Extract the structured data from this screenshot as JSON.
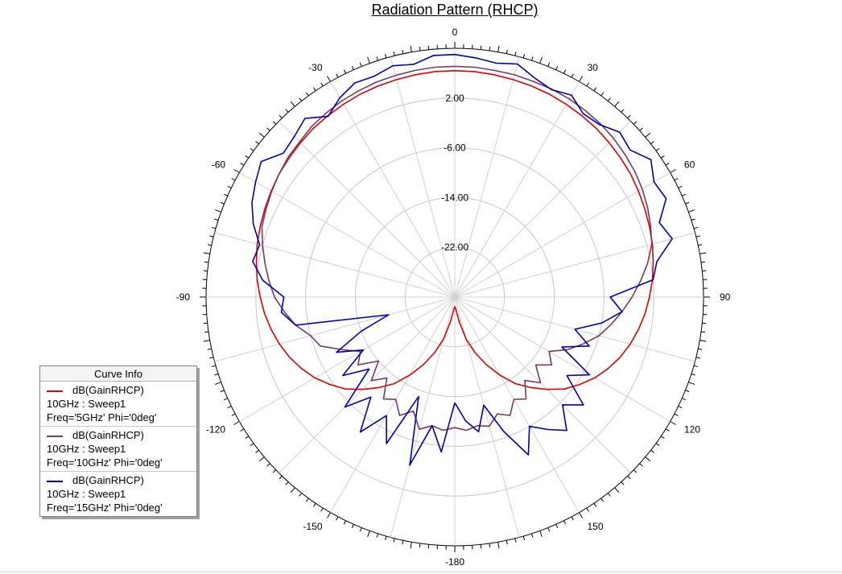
{
  "chart_data": {
    "type": "polar-line",
    "title": "Radiation Pattern (RHCP)",
    "angle_ticks": [
      {
        "angle": 0,
        "label": "0"
      },
      {
        "angle": 30,
        "label": "30"
      },
      {
        "angle": 60,
        "label": "60"
      },
      {
        "angle": 90,
        "label": "90"
      },
      {
        "angle": 120,
        "label": "120"
      },
      {
        "angle": 150,
        "label": "150"
      },
      {
        "angle": 180,
        "label": "-180"
      },
      {
        "angle": -150,
        "label": "-150"
      },
      {
        "angle": -120,
        "label": "-120"
      },
      {
        "angle": -90,
        "label": "-90"
      },
      {
        "angle": -60,
        "label": "-60"
      },
      {
        "angle": -30,
        "label": "-30"
      }
    ],
    "radial_ticks": [
      {
        "value": 2,
        "label": "2.00"
      },
      {
        "value": -6,
        "label": "-6.00"
      },
      {
        "value": -14,
        "label": "-14.00"
      },
      {
        "value": -22,
        "label": "-22.00"
      }
    ],
    "radial_range": [
      -30,
      10
    ],
    "angle_range": [
      -180,
      180
    ],
    "legend_title": "Curve Info",
    "series": [
      {
        "name": "dB(GainRHCP)",
        "setup": "10GHz : Sweep1",
        "params": "Freq='5GHz' Phi='0deg'",
        "color": "#e00000",
        "points": [
          [
            -180,
            -28.5
          ],
          [
            -175,
            -28
          ],
          [
            -170,
            -26
          ],
          [
            -165,
            -23
          ],
          [
            -160,
            -20.5
          ],
          [
            -155,
            -18
          ],
          [
            -150,
            -15.5
          ],
          [
            -145,
            -13
          ],
          [
            -140,
            -11
          ],
          [
            -135,
            -9
          ],
          [
            -130,
            -7
          ],
          [
            -125,
            -5.5
          ],
          [
            -120,
            -4
          ],
          [
            -115,
            -2.8
          ],
          [
            -110,
            -1.7
          ],
          [
            -105,
            -0.8
          ],
          [
            -100,
            0
          ],
          [
            -95,
            0.7
          ],
          [
            -90,
            1.3
          ],
          [
            -85,
            1.9
          ],
          [
            -80,
            2.4
          ],
          [
            -75,
            2.9
          ],
          [
            -70,
            3.3
          ],
          [
            -65,
            3.7
          ],
          [
            -60,
            4.1
          ],
          [
            -55,
            4.5
          ],
          [
            -50,
            4.8
          ],
          [
            -45,
            5.1
          ],
          [
            -40,
            5.4
          ],
          [
            -35,
            5.6
          ],
          [
            -30,
            5.8
          ],
          [
            -25,
            6
          ],
          [
            -20,
            6.1
          ],
          [
            -15,
            6.2
          ],
          [
            -10,
            6.3
          ],
          [
            -5,
            6.4
          ],
          [
            0,
            6.4
          ],
          [
            5,
            6.4
          ],
          [
            10,
            6.3
          ],
          [
            15,
            6.2
          ],
          [
            20,
            6.1
          ],
          [
            25,
            6
          ],
          [
            30,
            5.8
          ],
          [
            35,
            5.6
          ],
          [
            40,
            5.4
          ],
          [
            45,
            5.1
          ],
          [
            50,
            4.8
          ],
          [
            55,
            4.5
          ],
          [
            60,
            4.1
          ],
          [
            65,
            3.7
          ],
          [
            70,
            3.3
          ],
          [
            75,
            2.9
          ],
          [
            80,
            2.4
          ],
          [
            85,
            1.9
          ],
          [
            90,
            1.3
          ],
          [
            95,
            0.7
          ],
          [
            100,
            0
          ],
          [
            105,
            -0.8
          ],
          [
            110,
            -1.7
          ],
          [
            115,
            -2.8
          ],
          [
            120,
            -4
          ],
          [
            125,
            -5.5
          ],
          [
            130,
            -7
          ],
          [
            135,
            -9
          ],
          [
            140,
            -11
          ],
          [
            145,
            -13
          ],
          [
            150,
            -15.5
          ],
          [
            155,
            -18
          ],
          [
            160,
            -20.5
          ],
          [
            165,
            -23
          ],
          [
            170,
            -26
          ],
          [
            175,
            -28
          ],
          [
            180,
            -28.5
          ]
        ]
      },
      {
        "name": "dB(GainRHCP)",
        "setup": "10GHz : Sweep1",
        "params": "Freq='10GHz' Phi='0deg'",
        "color": "#7a3b5e",
        "points": [
          [
            -180,
            -9
          ],
          [
            -175,
            -8.5
          ],
          [
            -170,
            -9
          ],
          [
            -165,
            -8
          ],
          [
            -160,
            -10.5
          ],
          [
            -155,
            -9
          ],
          [
            -150,
            -11
          ],
          [
            -145,
            -10
          ],
          [
            -140,
            -13
          ],
          [
            -135,
            -11
          ],
          [
            -130,
            -14
          ],
          [
            -125,
            -11
          ],
          [
            -120,
            -12.5
          ],
          [
            -115,
            -10
          ],
          [
            -110,
            -7
          ],
          [
            -105,
            -6
          ],
          [
            -100,
            -4
          ],
          [
            -95,
            -2.5
          ],
          [
            -90,
            -1
          ],
          [
            -85,
            0
          ],
          [
            -80,
            1
          ],
          [
            -75,
            2
          ],
          [
            -70,
            3
          ],
          [
            -65,
            3.5
          ],
          [
            -60,
            4
          ],
          [
            -55,
            4.5
          ],
          [
            -50,
            5
          ],
          [
            -45,
            5.3
          ],
          [
            -40,
            5.8
          ],
          [
            -35,
            6.1
          ],
          [
            -30,
            6.4
          ],
          [
            -25,
            6.6
          ],
          [
            -20,
            6.8
          ],
          [
            -15,
            6.9
          ],
          [
            -10,
            7
          ],
          [
            -5,
            7.1
          ],
          [
            0,
            7.1
          ],
          [
            5,
            7.1
          ],
          [
            10,
            7
          ],
          [
            15,
            7
          ],
          [
            20,
            6.9
          ],
          [
            25,
            6.9
          ],
          [
            30,
            6.8
          ],
          [
            35,
            6.6
          ],
          [
            40,
            6.4
          ],
          [
            45,
            6.1
          ],
          [
            50,
            5.7
          ],
          [
            55,
            5.3
          ],
          [
            60,
            4.8
          ],
          [
            65,
            4.2
          ],
          [
            70,
            3.5
          ],
          [
            75,
            2.8
          ],
          [
            80,
            1.5
          ],
          [
            85,
            0
          ],
          [
            90,
            -1.5
          ],
          [
            95,
            -3
          ],
          [
            100,
            -4.5
          ],
          [
            105,
            -6
          ],
          [
            110,
            -8
          ],
          [
            115,
            -10
          ],
          [
            120,
            -12.5
          ],
          [
            125,
            -11
          ],
          [
            130,
            -13
          ],
          [
            135,
            -10.5
          ],
          [
            140,
            -12.5
          ],
          [
            145,
            -10
          ],
          [
            150,
            -11
          ],
          [
            155,
            -9
          ],
          [
            160,
            -10
          ],
          [
            165,
            -8.5
          ],
          [
            170,
            -9
          ],
          [
            175,
            -8.5
          ],
          [
            180,
            -9
          ]
        ]
      },
      {
        "name": "dB(GainRHCP)",
        "setup": "10GHz : Sweep1",
        "params": "Freq='15GHz' Phi='0deg'",
        "color": "#0000b8",
        "points": [
          [
            -180,
            -13
          ],
          [
            -175,
            -5
          ],
          [
            -170,
            -9
          ],
          [
            -165,
            -2
          ],
          [
            -160,
            -13
          ],
          [
            -155,
            -4
          ],
          [
            -150,
            -8
          ],
          [
            -145,
            -3.5
          ],
          [
            -140,
            -9
          ],
          [
            -135,
            -5
          ],
          [
            -130,
            -12
          ],
          [
            -125,
            -8
          ],
          [
            -120,
            -13
          ],
          [
            -115,
            -9
          ],
          [
            -110,
            -14
          ],
          [
            -105,
            -19
          ],
          [
            -100,
            -4
          ],
          [
            -95,
            -2
          ],
          [
            -90,
            -2.5
          ],
          [
            -85,
            1
          ],
          [
            -80,
            3
          ],
          [
            -75,
            2.5
          ],
          [
            -70,
            4.5
          ],
          [
            -65,
            6
          ],
          [
            -60,
            7
          ],
          [
            -55,
            8
          ],
          [
            -50,
            6
          ],
          [
            -45,
            6.5
          ],
          [
            -40,
            7.5
          ],
          [
            -35,
            5.5
          ],
          [
            -30,
            7
          ],
          [
            -25,
            8
          ],
          [
            -20,
            7.8
          ],
          [
            -15,
            8.5
          ],
          [
            -10,
            8
          ],
          [
            -5,
            9
          ],
          [
            0,
            9
          ],
          [
            5,
            8.6
          ],
          [
            10,
            8.2
          ],
          [
            15,
            8.8
          ],
          [
            20,
            7.5
          ],
          [
            25,
            6.8
          ],
          [
            30,
            7.5
          ],
          [
            35,
            6
          ],
          [
            40,
            6.2
          ],
          [
            45,
            7.5
          ],
          [
            50,
            6.8
          ],
          [
            55,
            8.5
          ],
          [
            60,
            7
          ],
          [
            65,
            7.5
          ],
          [
            70,
            5
          ],
          [
            75,
            6.2
          ],
          [
            80,
            3
          ],
          [
            85,
            2
          ],
          [
            90,
            -5
          ],
          [
            95,
            -3
          ],
          [
            100,
            -6
          ],
          [
            105,
            -10
          ],
          [
            110,
            -7
          ],
          [
            115,
            -11
          ],
          [
            120,
            -5
          ],
          [
            125,
            -8
          ],
          [
            130,
            -3
          ],
          [
            135,
            -5.5
          ],
          [
            140,
            -2
          ],
          [
            145,
            -4
          ],
          [
            150,
            -6
          ],
          [
            155,
            -2
          ],
          [
            160,
            -7
          ],
          [
            165,
            -12
          ],
          [
            170,
            -8
          ],
          [
            175,
            -10
          ],
          [
            180,
            -13
          ]
        ]
      }
    ]
  }
}
